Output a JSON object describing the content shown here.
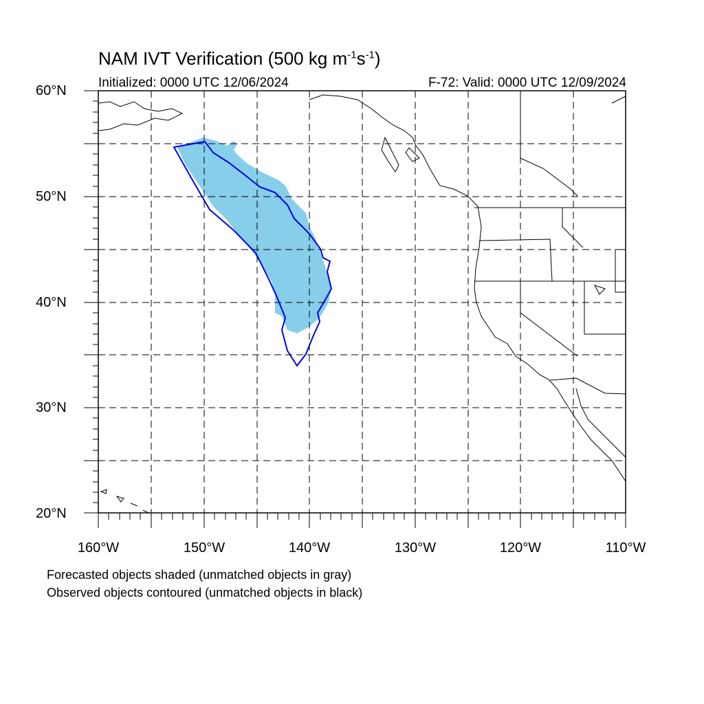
{
  "title": {
    "main": "NAM IVT Verification (500 kg m",
    "exp1": "-1",
    "mid": "s",
    "exp2": "-1",
    "end": ")"
  },
  "subtitle": {
    "initialized": "Initialized: 0000 UTC 12/06/2024",
    "valid": "F-72: Valid: 0000 UTC 12/09/2024"
  },
  "map": {
    "lon_range": [
      -160,
      -110
    ],
    "lat_range": [
      20,
      60
    ],
    "lat_labels": [
      "60°N",
      "50°N",
      "40°N",
      "30°N",
      "20°N"
    ],
    "lon_labels": [
      "160°W",
      "150°W",
      "140°W",
      "130°W",
      "120°W",
      "110°W"
    ],
    "forecast_fill_color": "#87ceeb",
    "observed_contour_color": "#0000ee",
    "grid_style": "dashed"
  },
  "legend": {
    "forecast": "Forecasted objects shaded (unmatched objects in gray)",
    "observed": "Observed objects contoured (unmatched objects in black)"
  }
}
